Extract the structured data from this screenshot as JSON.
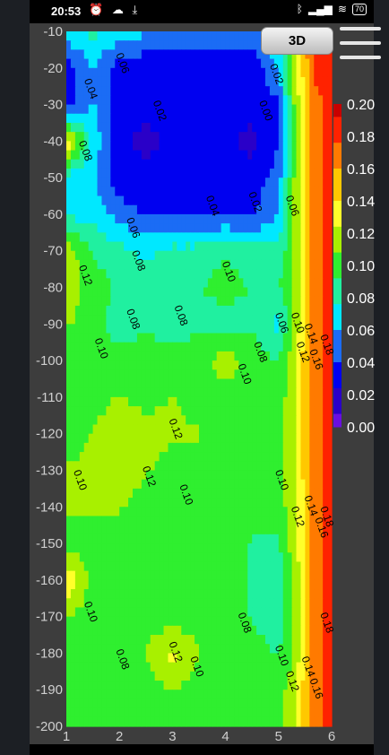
{
  "status_bar": {
    "time": "20:53",
    "left_icons": [
      "alarm-off-icon",
      "cloud-icon",
      "download-icon"
    ],
    "right_icons": [
      "bluetooth-icon",
      "signal-icon",
      "wifi-icon"
    ],
    "battery": "70"
  },
  "buttons": {
    "view_3d_label": "3D",
    "menu_icon": "hamburger-menu-icon"
  },
  "colors": {
    "phone_bg": "#3d3d3d",
    "colormap": [
      "#6a0fe0",
      "#2a00c8",
      "#0000f0",
      "#1b6cf5",
      "#00e8ff",
      "#20f0a0",
      "#2fef2f",
      "#a8f000",
      "#ffff2a",
      "#ffc800",
      "#ff7a00",
      "#ff2200",
      "#c80000"
    ]
  },
  "chart_data": {
    "type": "heatmap",
    "title": "",
    "xlabel": "",
    "ylabel": "",
    "xlim": [
      1,
      6
    ],
    "ylim": [
      -200,
      -10
    ],
    "x_ticks": [
      "1",
      "2",
      "3",
      "4",
      "5",
      "6"
    ],
    "y_ticks": [
      "-10",
      "-20",
      "-30",
      "-40",
      "-50",
      "-60",
      "-70",
      "-80",
      "-90",
      "-100",
      "-110",
      "-120",
      "-130",
      "-140",
      "-150",
      "-160",
      "-170",
      "-180",
      "-190",
      "-200"
    ],
    "colorbar": {
      "range": [
        0.0,
        0.2
      ],
      "ticks": [
        "0.20",
        "0.18",
        "0.16",
        "0.14",
        "0.12",
        "0.10",
        "0.08",
        "0.06",
        "0.04",
        "0.02",
        "0.00"
      ]
    },
    "x": [
      1.0,
      1.5,
      2.0,
      2.5,
      3.0,
      3.5,
      4.0,
      4.5,
      5.0,
      5.3,
      5.5,
      5.7,
      6.0
    ],
    "y": [
      -10,
      -20,
      -30,
      -40,
      -50,
      -60,
      -70,
      -80,
      -90,
      -100,
      -110,
      -120,
      -130,
      -140,
      -150,
      -160,
      -170,
      -180,
      -190,
      -200
    ],
    "z": [
      [
        0.07,
        0.08,
        0.07,
        0.06,
        0.06,
        0.06,
        0.06,
        0.05,
        0.08,
        0.12,
        0.16,
        0.18,
        0.18
      ],
      [
        0.03,
        0.06,
        0.03,
        0.03,
        0.03,
        0.03,
        0.03,
        0.03,
        0.06,
        0.12,
        0.15,
        0.18,
        0.18
      ],
      [
        0.03,
        0.06,
        0.03,
        0.03,
        0.03,
        0.03,
        0.03,
        0.03,
        0.04,
        0.11,
        0.14,
        0.17,
        0.18
      ],
      [
        0.14,
        0.07,
        0.03,
        0.02,
        0.03,
        0.03,
        0.03,
        0.02,
        0.04,
        0.11,
        0.14,
        0.17,
        0.18
      ],
      [
        0.07,
        0.06,
        0.03,
        0.03,
        0.03,
        0.03,
        0.03,
        0.03,
        0.05,
        0.11,
        0.14,
        0.17,
        0.18
      ],
      [
        0.07,
        0.07,
        0.05,
        0.04,
        0.04,
        0.04,
        0.04,
        0.04,
        0.06,
        0.11,
        0.14,
        0.17,
        0.18
      ],
      [
        0.12,
        0.09,
        0.08,
        0.07,
        0.08,
        0.08,
        0.09,
        0.08,
        0.08,
        0.11,
        0.14,
        0.17,
        0.18
      ],
      [
        0.12,
        0.1,
        0.09,
        0.09,
        0.09,
        0.09,
        0.1,
        0.09,
        0.09,
        0.11,
        0.14,
        0.17,
        0.18
      ],
      [
        0.11,
        0.1,
        0.08,
        0.09,
        0.08,
        0.09,
        0.08,
        0.09,
        0.07,
        0.11,
        0.14,
        0.17,
        0.18
      ],
      [
        0.1,
        0.1,
        0.1,
        0.1,
        0.1,
        0.1,
        0.12,
        0.1,
        0.09,
        0.12,
        0.15,
        0.17,
        0.18
      ],
      [
        0.1,
        0.1,
        0.11,
        0.1,
        0.11,
        0.1,
        0.1,
        0.1,
        0.1,
        0.12,
        0.15,
        0.17,
        0.18
      ],
      [
        0.1,
        0.11,
        0.12,
        0.12,
        0.11,
        0.11,
        0.1,
        0.1,
        0.1,
        0.12,
        0.15,
        0.17,
        0.18
      ],
      [
        0.11,
        0.11,
        0.12,
        0.11,
        0.1,
        0.1,
        0.1,
        0.1,
        0.1,
        0.12,
        0.15,
        0.17,
        0.18
      ],
      [
        0.11,
        0.11,
        0.11,
        0.1,
        0.1,
        0.1,
        0.1,
        0.1,
        0.1,
        0.12,
        0.14,
        0.17,
        0.18
      ],
      [
        0.1,
        0.1,
        0.1,
        0.1,
        0.1,
        0.1,
        0.1,
        0.09,
        0.09,
        0.12,
        0.14,
        0.17,
        0.18
      ],
      [
        0.14,
        0.1,
        0.1,
        0.1,
        0.1,
        0.1,
        0.1,
        0.09,
        0.08,
        0.11,
        0.14,
        0.17,
        0.18
      ],
      [
        0.11,
        0.1,
        0.1,
        0.1,
        0.1,
        0.1,
        0.1,
        0.09,
        0.08,
        0.11,
        0.14,
        0.17,
        0.18
      ],
      [
        0.1,
        0.1,
        0.09,
        0.11,
        0.13,
        0.11,
        0.1,
        0.1,
        0.09,
        0.11,
        0.14,
        0.17,
        0.18
      ],
      [
        0.1,
        0.1,
        0.1,
        0.1,
        0.11,
        0.1,
        0.1,
        0.1,
        0.1,
        0.12,
        0.15,
        0.17,
        0.18
      ],
      [
        0.1,
        0.1,
        0.1,
        0.1,
        0.1,
        0.1,
        0.1,
        0.1,
        0.1,
        0.12,
        0.15,
        0.17,
        0.18
      ]
    ],
    "contour_labels": [
      {
        "text": "0.06",
        "x": 2.0,
        "y": -19
      },
      {
        "text": "0.04",
        "x": 1.4,
        "y": -26
      },
      {
        "text": "0.02",
        "x": 2.7,
        "y": -32
      },
      {
        "text": "0.00",
        "x": 4.7,
        "y": -32
      },
      {
        "text": "0.02",
        "x": 4.9,
        "y": -22
      },
      {
        "text": "0.08",
        "x": 1.3,
        "y": -43
      },
      {
        "text": "0.04",
        "x": 3.7,
        "y": -58
      },
      {
        "text": "0.02",
        "x": 4.5,
        "y": -57
      },
      {
        "text": "0.06",
        "x": 5.2,
        "y": -58
      },
      {
        "text": "0.06",
        "x": 2.2,
        "y": -64
      },
      {
        "text": "0.08",
        "x": 2.3,
        "y": -73
      },
      {
        "text": "0.10",
        "x": 4.0,
        "y": -76
      },
      {
        "text": "0.12",
        "x": 1.3,
        "y": -77
      },
      {
        "text": "0.08",
        "x": 2.2,
        "y": -89
      },
      {
        "text": "0.08",
        "x": 3.1,
        "y": -88
      },
      {
        "text": "0.06",
        "x": 5.0,
        "y": -90
      },
      {
        "text": "0.10",
        "x": 5.3,
        "y": -90
      },
      {
        "text": "0.10",
        "x": 1.6,
        "y": -97
      },
      {
        "text": "0.08",
        "x": 4.6,
        "y": -98
      },
      {
        "text": "0.10",
        "x": 4.3,
        "y": -104
      },
      {
        "text": "0.12",
        "x": 5.4,
        "y": -98
      },
      {
        "text": "0.14",
        "x": 5.55,
        "y": -93
      },
      {
        "text": "0.16",
        "x": 5.65,
        "y": -100
      },
      {
        "text": "0.18",
        "x": 5.85,
        "y": -96
      },
      {
        "text": "0.12",
        "x": 3.0,
        "y": -119
      },
      {
        "text": "0.12",
        "x": 2.5,
        "y": -132
      },
      {
        "text": "0.10",
        "x": 3.2,
        "y": -137
      },
      {
        "text": "0.10",
        "x": 1.2,
        "y": -133
      },
      {
        "text": "0.10",
        "x": 5.0,
        "y": -133
      },
      {
        "text": "0.14",
        "x": 5.55,
        "y": -140
      },
      {
        "text": "0.12",
        "x": 5.3,
        "y": -143
      },
      {
        "text": "0.16",
        "x": 5.75,
        "y": -146
      },
      {
        "text": "0.18",
        "x": 5.85,
        "y": -143
      },
      {
        "text": "0.10",
        "x": 1.4,
        "y": -169
      },
      {
        "text": "0.08",
        "x": 4.3,
        "y": -172
      },
      {
        "text": "0.10",
        "x": 5.0,
        "y": -181
      },
      {
        "text": "0.08",
        "x": 2.0,
        "y": -182
      },
      {
        "text": "0.12",
        "x": 3.0,
        "y": -180
      },
      {
        "text": "0.10",
        "x": 3.4,
        "y": -184
      },
      {
        "text": "0.18",
        "x": 5.85,
        "y": -172
      },
      {
        "text": "0.14",
        "x": 5.5,
        "y": -184
      },
      {
        "text": "0.16",
        "x": 5.65,
        "y": -190
      },
      {
        "text": "0.12",
        "x": 5.2,
        "y": -188
      }
    ]
  }
}
